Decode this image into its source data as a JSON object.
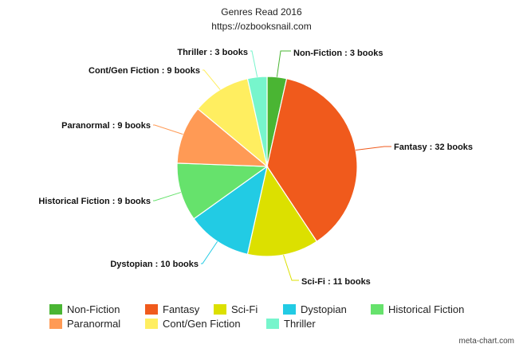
{
  "chart_data": {
    "type": "pie",
    "title": "Genres Read 2016",
    "subtitle": "https://ozbooksnail.com",
    "slices": [
      {
        "name": "Non-Fiction",
        "value": 3,
        "label": "Non-Fiction : 3 books",
        "color": "#4ab533"
      },
      {
        "name": "Fantasy",
        "value": 32,
        "label": "Fantasy : 32 books",
        "color": "#f05a1c"
      },
      {
        "name": "Sci-Fi",
        "value": 11,
        "label": "Sci-Fi : 11 books",
        "color": "#dce000"
      },
      {
        "name": "Dystopian",
        "value": 10,
        "label": "Dystopian : 10 books",
        "color": "#22cbe4"
      },
      {
        "name": "Historical Fiction",
        "value": 9,
        "label": "Historical Fiction : 9 books",
        "color": "#66e26c"
      },
      {
        "name": "Paranormal",
        "value": 9,
        "label": "Paranormal : 9 books",
        "color": "#ff9a55"
      },
      {
        "name": "Cont/Gen Fiction",
        "value": 9,
        "label": "Cont/Gen Fiction : 9 books",
        "color": "#ffee60"
      },
      {
        "name": "Thriller",
        "value": 3,
        "label": "Thriller : 3 books",
        "color": "#77f5cc"
      }
    ],
    "legend_position": "bottom"
  },
  "credit": "meta-chart.com"
}
